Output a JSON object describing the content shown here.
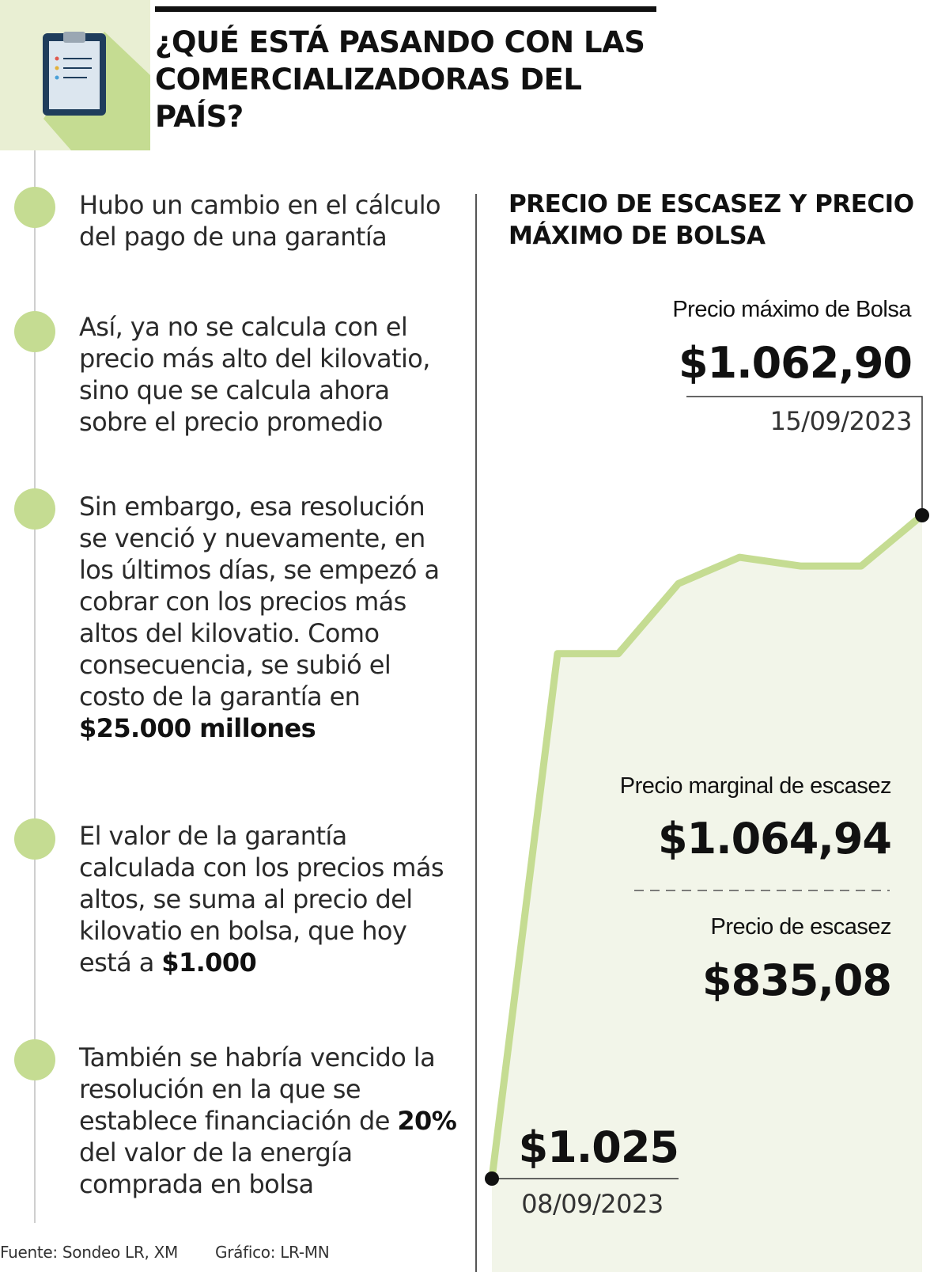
{
  "header": {
    "title": "¿QUÉ ESTÁ PASANDO CON LAS COMERCIALIZADORAS DEL PAÍS?",
    "icon": "clipboard-icon"
  },
  "timeline": {
    "items": [
      {
        "text_before": "Hubo un cambio en el cálculo del pago de una garantía",
        "bold": "",
        "text_after": ""
      },
      {
        "text_before": "Así, ya no se calcula con el precio más alto del kilovatio, sino que se calcula ahora sobre el precio promedio",
        "bold": "",
        "text_after": ""
      },
      {
        "text_before": "Sin embargo, esa resolución se venció y nuevamente, en los últimos días, se empezó a cobrar con los precios más altos del kilovatio. Como consecuencia, se subió el costo de la garantía  en ",
        "bold": "$25.000 millones",
        "text_after": ""
      },
      {
        "text_before": "El valor de la garantía calculada con los precios más altos, se suma al precio del kilovatio en bolsa, que hoy está a ",
        "bold": "$1.000",
        "text_after": ""
      },
      {
        "text_before": "También se habría vencido la resolución en la que se establece financiación de ",
        "bold": "20%",
        "text_after": " del valor de la energía comprada en bolsa"
      }
    ]
  },
  "chart_data": {
    "type": "area",
    "title": "PRECIO DE ESCASEZ Y PRECIO MÁXIMO DE BOLSA",
    "series": [
      {
        "values": [
          1025,
          1055,
          1055,
          1059,
          1060.5,
          1060,
          1060,
          1062.9
        ]
      }
    ],
    "start": {
      "value_label": "$1.025",
      "date": "08/09/2023",
      "value": 1025
    },
    "end": {
      "name": "Precio máximo de Bolsa",
      "value_label": "$1.062,90",
      "date": "15/09/2023",
      "value": 1062.9
    },
    "reference_values": [
      {
        "name": "Precio marginal de escasez",
        "value_label": "$1.064,94"
      },
      {
        "name": "Precio de escasez",
        "value_label": "$835,08"
      }
    ],
    "colors": {
      "line": "#c5dc92",
      "area": "#f2f5e9",
      "marker": "#111111"
    }
  },
  "footer": {
    "source": "Fuente: Sondeo LR, XM",
    "credit": "Gráfico: LR-MN"
  }
}
